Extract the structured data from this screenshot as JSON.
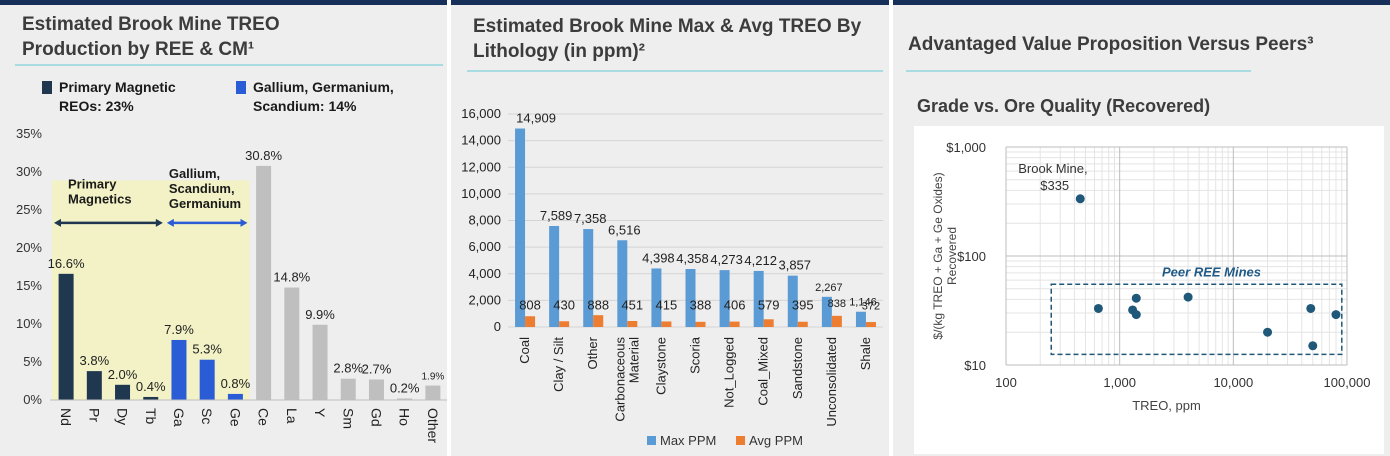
{
  "panels": {
    "left": {
      "title_line1": "Estimated Brook Mine TREO",
      "title_line2": "Production by REE & CM¹",
      "legend": [
        {
          "label_line1": "Primary Magnetic",
          "label_line2": "REOs: 23%",
          "color": "#203750"
        },
        {
          "label_line1": "Gallium, Germanium,",
          "label_line2": "Scandium: 14%",
          "color": "#2a5cd6"
        }
      ]
    },
    "middle": {
      "title_line1": "Estimated Brook Mine Max & Avg TREO By",
      "title_line2": "Lithology (in ppm)²"
    },
    "right": {
      "title": "Advantaged Value Proposition Versus Peers³",
      "chart_heading": "Grade vs. Ore Quality (Recovered)"
    }
  },
  "chart_data": [
    {
      "type": "bar",
      "categories": [
        "Nd",
        "Pr",
        "Dy",
        "Tb",
        "Ga",
        "Sc",
        "Ge",
        "Ce",
        "La",
        "Y",
        "Sm",
        "Gd",
        "Ho",
        "Other"
      ],
      "values": [
        16.6,
        3.8,
        2.0,
        0.4,
        7.9,
        5.3,
        0.8,
        30.8,
        14.8,
        9.9,
        2.8,
        2.7,
        0.2,
        1.9
      ],
      "value_labels": [
        "16.6%",
        "3.8%",
        "2.0%",
        "0.4%",
        "7.9%",
        "5.3%",
        "0.8%",
        "30.8%",
        "14.8%",
        "9.9%",
        "2.8%",
        "2.7%",
        "0.2%",
        "1.9%"
      ],
      "bar_colors": [
        "#203750",
        "#203750",
        "#203750",
        "#203750",
        "#2a5cd6",
        "#2a5cd6",
        "#2a5cd6",
        "#bfbfbf",
        "#bfbfbf",
        "#bfbfbf",
        "#bfbfbf",
        "#bfbfbf",
        "#bfbfbf",
        "#bfbfbf"
      ],
      "ylim": [
        0,
        35
      ],
      "yticks": [
        "0%",
        "5%",
        "10%",
        "15%",
        "20%",
        "25%",
        "30%",
        "35%"
      ],
      "ytick_values": [
        0,
        5,
        10,
        15,
        20,
        25,
        30,
        35
      ],
      "groups": [
        {
          "label_lines": [
            "Primary",
            "Magnetics"
          ],
          "first": 0,
          "last": 3,
          "color": "#203750"
        },
        {
          "label_lines": [
            "Gallium,",
            "Scandium,",
            "Germanium"
          ],
          "first": 4,
          "last": 6,
          "color": "#2a5cd6"
        }
      ],
      "highlight_color": "#f2f2c6",
      "grid": false
    },
    {
      "type": "bar",
      "categories": [
        "Coal",
        "Clay / Silt",
        "Other",
        "Carbonaceous Material",
        "Claystone",
        "Scoria",
        "Not_Logged",
        "Coal_Mixed",
        "Sandstone",
        "Unconsolidated",
        "Shale"
      ],
      "category_lines": [
        [
          "Coal"
        ],
        [
          "Clay / Silt"
        ],
        [
          "Other"
        ],
        [
          "Carbonaceous",
          "Material"
        ],
        [
          "Claystone"
        ],
        [
          "Scoria"
        ],
        [
          "Not_Logged"
        ],
        [
          "Coal_Mixed"
        ],
        [
          "Sandstone"
        ],
        [
          "Unconsolidated"
        ],
        [
          "Shale"
        ]
      ],
      "series": [
        {
          "name": "Max PPM",
          "color": "#5b9bd5",
          "values": [
            14909,
            7589,
            7358,
            6516,
            4398,
            4358,
            4273,
            4212,
            3857,
            2267,
            1146
          ],
          "labels": [
            "14,909",
            "7,589",
            "7,358",
            "6,516",
            "4,398",
            "4,358",
            "4,273",
            "4,212",
            "3,857",
            "2,267",
            "1,146"
          ]
        },
        {
          "name": "Avg PPM",
          "color": "#ed7d31",
          "values": [
            808,
            430,
            888,
            451,
            415,
            388,
            406,
            579,
            395,
            838,
            372
          ],
          "labels": [
            "808",
            "430",
            "888",
            "451",
            "415",
            "388",
            "406",
            "579",
            "395",
            "838",
            "372"
          ]
        }
      ],
      "ylim": [
        0,
        16000
      ],
      "yticks": [
        "0",
        "2,000",
        "4,000",
        "6,000",
        "8,000",
        "10,000",
        "12,000",
        "14,000",
        "16,000"
      ],
      "ytick_values": [
        0,
        2000,
        4000,
        6000,
        8000,
        10000,
        12000,
        14000,
        16000
      ],
      "legend_position": "bottom",
      "grid": true
    },
    {
      "type": "scatter",
      "x_scale": "log",
      "y_scale": "log",
      "xlim": [
        100,
        100000
      ],
      "ylim": [
        10,
        1000
      ],
      "xticks": [
        "100",
        "1,000",
        "10,000",
        "100,000"
      ],
      "xtick_values": [
        100,
        1000,
        10000,
        100000
      ],
      "yticks": [
        "$10",
        "$100",
        "$1,000"
      ],
      "ytick_values": [
        10,
        100,
        1000
      ],
      "xlabel": "TREO, ppm",
      "ylabel_line1": "$/(kg TREO + Ga + Ge Oxides)",
      "ylabel_line2": "Recovered",
      "point_color": "#1f5878",
      "grid": true,
      "highlight": {
        "x": 450,
        "y": 335,
        "label_line1": "Brook Mine,",
        "label_line2": "$335"
      },
      "peer_label": "Peer REE Mines",
      "peer_box": {
        "x": [
          250,
          90000
        ],
        "y": [
          12.5,
          55
        ]
      },
      "points": [
        {
          "x": 450,
          "y": 335
        },
        {
          "x": 650,
          "y": 33
        },
        {
          "x": 1300,
          "y": 32
        },
        {
          "x": 1400,
          "y": 29
        },
        {
          "x": 1400,
          "y": 41
        },
        {
          "x": 4000,
          "y": 42
        },
        {
          "x": 20000,
          "y": 20
        },
        {
          "x": 48000,
          "y": 33
        },
        {
          "x": 50000,
          "y": 15
        },
        {
          "x": 80000,
          "y": 29
        }
      ]
    }
  ]
}
